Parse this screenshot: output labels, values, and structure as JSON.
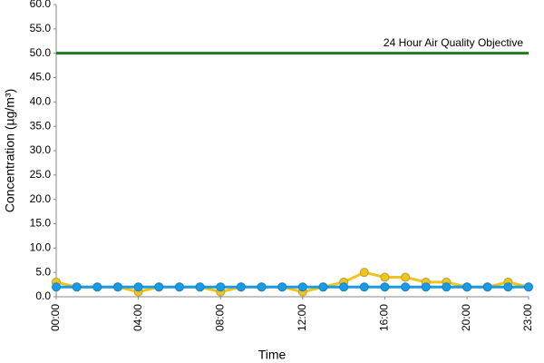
{
  "chart_data": {
    "type": "line",
    "x_label": "Time",
    "y_label": "Concentration (µg/m³)",
    "categories": [
      "00:00",
      null,
      null,
      null,
      "04:00",
      null,
      null,
      null,
      "08:00",
      null,
      null,
      null,
      "12:00",
      null,
      null,
      null,
      "16:00",
      null,
      null,
      null,
      "20:00",
      null,
      null,
      "23:00"
    ],
    "series": [
      {
        "color": "#f0c419",
        "values": [
          3,
          2,
          2,
          2,
          1,
          2,
          2,
          2,
          1,
          2,
          2,
          2,
          1,
          2,
          3,
          5,
          4,
          4,
          3,
          3,
          2,
          2,
          3,
          2
        ]
      },
      {
        "color": "#1a9be6",
        "values": [
          2,
          2,
          2,
          2,
          2,
          2,
          2,
          2,
          2,
          2,
          2,
          2,
          2,
          2,
          2,
          2,
          2,
          2,
          2,
          2,
          2,
          2,
          2,
          2
        ]
      }
    ],
    "objective": {
      "value": 50,
      "label": "24 Hour Air Quality Objective",
      "color": "#1e7b1e"
    },
    "ylim": [
      0,
      60
    ],
    "yticks": [
      {
        "value": 0,
        "label": "0.0"
      },
      {
        "value": 5,
        "label": "5.0"
      },
      {
        "value": 10,
        "label": "10.0"
      },
      {
        "value": 15,
        "label": "15.0"
      },
      {
        "value": 20,
        "label": "20.0"
      },
      {
        "value": 25,
        "label": "25.0"
      },
      {
        "value": 30,
        "label": "30.0"
      },
      {
        "value": 35,
        "label": "35.0"
      },
      {
        "value": 40,
        "label": "40.0"
      },
      {
        "value": 45,
        "label": "45.0"
      },
      {
        "value": 50,
        "label": "50.0"
      },
      {
        "value": 55,
        "label": "55.0"
      },
      {
        "value": 60,
        "label": "60.0"
      }
    ],
    "grid": false
  }
}
